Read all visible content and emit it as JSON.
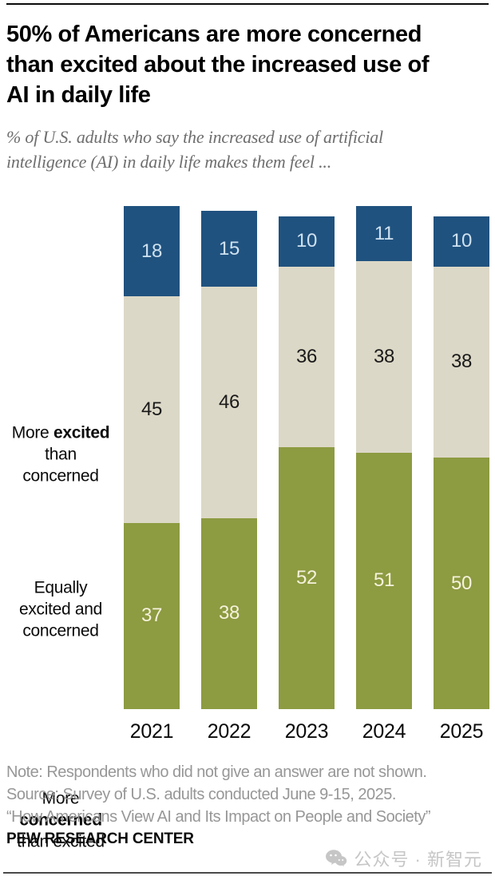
{
  "header": {
    "title_lines": [
      "50% of Americans are more concerned",
      "than excited about the increased use of",
      "AI in daily life"
    ],
    "subtitle_lines": [
      "% of U.S. adults who say the increased use of artificial",
      "intelligence (AI) in daily life makes them feel ..."
    ]
  },
  "chart_data": {
    "type": "bar",
    "stacked": true,
    "orientation": "vertical",
    "categories": [
      "2021",
      "2022",
      "2023",
      "2024",
      "2025"
    ],
    "series": [
      {
        "name": "More excited than concerned",
        "color": "#20527F",
        "label_color": "#CEE1F0",
        "values": [
          18,
          15,
          10,
          11,
          10
        ]
      },
      {
        "name": "Equally excited and concerned",
        "color": "#DCD8C7",
        "label_color": "#1A1A1A",
        "values": [
          45,
          46,
          36,
          38,
          38
        ]
      },
      {
        "name": "More concerned than excited",
        "color": "#8D9B41",
        "label_color": "#F5F2DC",
        "values": [
          37,
          38,
          52,
          51,
          50
        ]
      }
    ],
    "ylim": [
      0,
      100
    ],
    "grid": false,
    "value_labels": "inside-center",
    "legend_position": "left-category-labels"
  },
  "category_labels": {
    "excited": {
      "line1_pre": "More ",
      "line1_bold": "excited",
      "line2": "than",
      "line3": "concerned"
    },
    "equally": {
      "line1": "Equally",
      "line2": "excited and",
      "line3": "concerned"
    },
    "concerned": {
      "line1": "More",
      "line2_bold": "concerned",
      "line3": "than excited"
    }
  },
  "footer": {
    "note_lines": [
      "Note: Respondents who did not give an answer are not shown.",
      "Source: Survey of U.S. adults conducted June 9-15, 2025.",
      "“How Americans View AI and Its Impact on People and Society”"
    ],
    "brand": "PEW RESEARCH CENTER",
    "watermark": "公众号 · 新智元"
  },
  "colors": {
    "excited_blue": "#20527F",
    "equally_beige": "#DCD8C7",
    "concerned_green": "#8D9B41",
    "note_gray": "#979797",
    "watermark_gray": "#C6C6C6"
  }
}
